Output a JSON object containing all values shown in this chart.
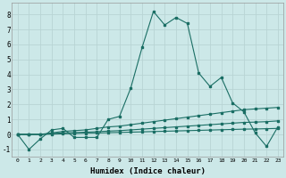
{
  "title": "",
  "xlabel": "Humidex (Indice chaleur)",
  "ylabel": "",
  "bg_color": "#cce8e8",
  "line_color": "#1a6e64",
  "grid_color": "#b8d4d4",
  "xlim": [
    -0.5,
    23.5
  ],
  "ylim": [
    -1.5,
    8.8
  ],
  "yticks": [
    -1,
    0,
    1,
    2,
    3,
    4,
    5,
    6,
    7,
    8
  ],
  "xticks": [
    0,
    1,
    2,
    3,
    4,
    5,
    6,
    7,
    8,
    9,
    10,
    11,
    12,
    13,
    14,
    15,
    16,
    17,
    18,
    19,
    20,
    21,
    22,
    23
  ],
  "line1_x": [
    0,
    1,
    2,
    3,
    4,
    5,
    6,
    7,
    8,
    9,
    10,
    11,
    12,
    13,
    14,
    15,
    16,
    17,
    18,
    19,
    20,
    21,
    22,
    23
  ],
  "line1_y": [
    0.0,
    -1.0,
    -0.3,
    0.3,
    0.4,
    -0.2,
    -0.2,
    -0.2,
    1.0,
    1.2,
    3.1,
    5.8,
    8.2,
    7.3,
    7.8,
    7.4,
    4.1,
    3.2,
    3.8,
    2.1,
    1.5,
    0.1,
    -0.8,
    0.5
  ],
  "line2_x": [
    0,
    1,
    2,
    3,
    4,
    5,
    6,
    7,
    8,
    9,
    10,
    11,
    12,
    13,
    14,
    15,
    16,
    17,
    18,
    19,
    20,
    21,
    22,
    23
  ],
  "line2_y": [
    0.0,
    0.0,
    0.0,
    0.1,
    0.2,
    0.25,
    0.3,
    0.4,
    0.5,
    0.55,
    0.65,
    0.75,
    0.85,
    0.95,
    1.05,
    1.15,
    1.25,
    1.35,
    1.45,
    1.55,
    1.65,
    1.7,
    1.75,
    1.8
  ],
  "line3_x": [
    0,
    1,
    2,
    3,
    4,
    5,
    6,
    7,
    8,
    9,
    10,
    11,
    12,
    13,
    14,
    15,
    16,
    17,
    18,
    19,
    20,
    21,
    22,
    23
  ],
  "line3_y": [
    0.0,
    0.0,
    0.0,
    0.05,
    0.1,
    0.12,
    0.15,
    0.18,
    0.22,
    0.25,
    0.3,
    0.35,
    0.4,
    0.45,
    0.5,
    0.55,
    0.6,
    0.65,
    0.7,
    0.75,
    0.8,
    0.82,
    0.85,
    0.9
  ],
  "line4_x": [
    0,
    1,
    2,
    3,
    4,
    5,
    6,
    7,
    8,
    9,
    10,
    11,
    12,
    13,
    14,
    15,
    16,
    17,
    18,
    19,
    20,
    21,
    22,
    23
  ],
  "line4_y": [
    0.0,
    0.0,
    0.0,
    0.02,
    0.04,
    0.06,
    0.08,
    0.09,
    0.11,
    0.13,
    0.15,
    0.17,
    0.19,
    0.21,
    0.23,
    0.25,
    0.27,
    0.29,
    0.31,
    0.33,
    0.35,
    0.36,
    0.38,
    0.4
  ]
}
